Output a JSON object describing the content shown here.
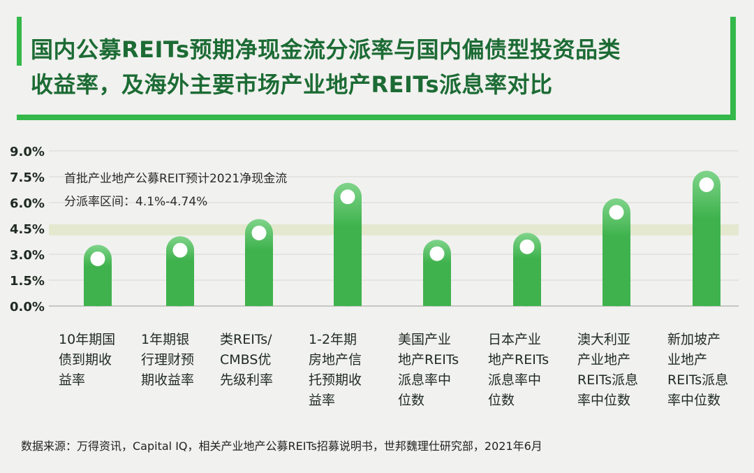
{
  "title": {
    "line1": "国内公募REITs预期净现金流分派率与国内偏债型投资品类",
    "line2": "收益率，及海外主要市场产业地产REITs派息率对比"
  },
  "annotation": {
    "line1": "首批产业地产公募REIT预计2021净现金流",
    "line2": "分派率区间：4.1%-4.74%",
    "range": [
      4.1,
      4.74
    ]
  },
  "source": "数据来源：万得资讯，Capital IQ，相关产业地产公募REITs招募说明书，世邦魏理仕研究部，2021年6月",
  "colors": {
    "bar": "#3fb24d",
    "bar_top": "#7fd48a",
    "band": "#e3e8cf",
    "axis_text": "#1f2a21",
    "title": "#1c6b34"
  },
  "chart_data": {
    "type": "bar",
    "categories": [
      [
        "10年期国",
        "债到期收",
        "益率"
      ],
      [
        "1年期银",
        "行理财预",
        "期收益率"
      ],
      [
        "类REITs/",
        "CMBS优",
        "先级利率"
      ],
      [
        "1-2年期",
        "房地产信",
        "托预期收",
        "益率"
      ],
      [
        "美国产业",
        "地产REITs",
        "派息率中",
        "位数"
      ],
      [
        "日本产业",
        "地产REITs",
        "派息率中",
        "位数"
      ],
      [
        "澳大利亚",
        "产业地产",
        "REITs派息",
        "率中位数"
      ],
      [
        "新加坡产",
        "业地产",
        "REITs派息",
        "率中位数"
      ]
    ],
    "values": [
      2.9,
      3.4,
      4.4,
      6.5,
      3.2,
      3.6,
      5.6,
      7.2
    ],
    "ylim": [
      0,
      9
    ],
    "yticks": [
      "0.0%",
      "1.5%",
      "3.0%",
      "4.5%",
      "6.0%",
      "7.5%",
      "9.0%"
    ],
    "yticks_values": [
      0,
      1.5,
      3,
      4.5,
      6,
      7.5,
      9
    ],
    "grid": true
  }
}
